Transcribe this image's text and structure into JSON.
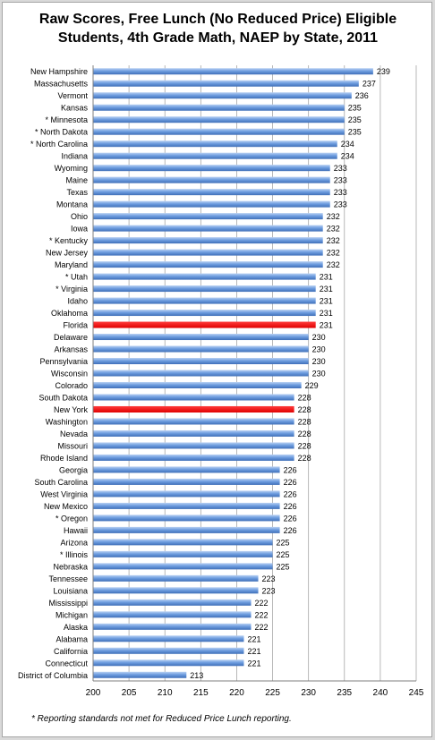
{
  "title_line1": "Raw Scores, Free Lunch (No Reduced Price) Eligible",
  "title_line2": "Students, 4th Grade Math, NAEP by State, 2011",
  "footnote": "* Reporting standards not met for Reduced Price Lunch reporting.",
  "chart_data": {
    "type": "bar",
    "orientation": "horizontal",
    "xlim": [
      200,
      245
    ],
    "x_ticks": [
      200,
      205,
      210,
      215,
      220,
      225,
      230,
      235,
      240,
      245
    ],
    "grid": "vertical",
    "bar_color": "#5b8ed6",
    "highlight_color": "#ff0000",
    "categories": [
      "New Hampshire",
      "Massachusetts",
      "Vermont",
      "Kansas",
      "* Minnesota",
      "* North Dakota",
      "* North Carolina",
      "Indiana",
      "Wyoming",
      "Maine",
      "Texas",
      "Montana",
      "Ohio",
      "Iowa",
      "* Kentucky",
      "New Jersey",
      "Maryland",
      "* Utah",
      "* Virginia",
      "Idaho",
      "Oklahoma",
      "Florida",
      "Delaware",
      "Arkansas",
      "Pennsylvania",
      "Wisconsin",
      "Colorado",
      "South Dakota",
      "New York",
      "Washington",
      "Nevada",
      "Missouri",
      "Rhode Island",
      "Georgia",
      "South Carolina",
      "West Virginia",
      "New Mexico",
      "* Oregon",
      "Hawaii",
      "Arizona",
      "* Illinois",
      "Nebraska",
      "Tennessee",
      "Louisiana",
      "Mississippi",
      "Michigan",
      "Alaska",
      "Alabama",
      "California",
      "Connecticut",
      "District of Columbia"
    ],
    "values": [
      239,
      237,
      236,
      235,
      235,
      235,
      234,
      234,
      233,
      233,
      233,
      233,
      232,
      232,
      232,
      232,
      232,
      231,
      231,
      231,
      231,
      231,
      230,
      230,
      230,
      230,
      229,
      228,
      228,
      228,
      228,
      228,
      228,
      226,
      226,
      226,
      226,
      226,
      226,
      225,
      225,
      225,
      223,
      223,
      222,
      222,
      222,
      221,
      221,
      221,
      213
    ],
    "highlighted": [
      "Florida",
      "New York"
    ]
  }
}
